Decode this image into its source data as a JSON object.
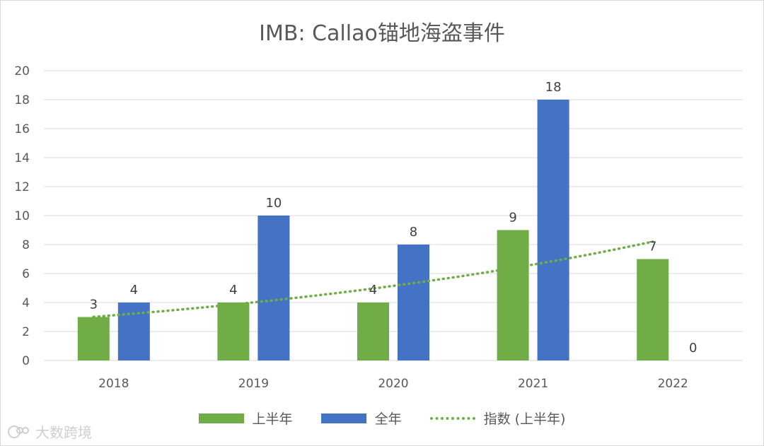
{
  "chart_data": {
    "type": "bar",
    "title": "IMB: Callao锚地海盗事件",
    "categories": [
      "2018",
      "2019",
      "2020",
      "2021",
      "2022"
    ],
    "series": [
      {
        "name": "上半年",
        "values": [
          3,
          4,
          4,
          9,
          7
        ],
        "color": "#70ad47"
      },
      {
        "name": "全年",
        "values": [
          4,
          10,
          8,
          18,
          0
        ],
        "color": "#4472c4"
      }
    ],
    "trendline": {
      "name": "指数 (上半年)",
      "type": "exponential",
      "of_series": "上半年",
      "color": "#70ad47",
      "style": "dotted"
    },
    "ylim": [
      0,
      20
    ],
    "yticks": [
      "0",
      "2",
      "4",
      "6",
      "8",
      "10",
      "12",
      "14",
      "16",
      "18",
      "20"
    ],
    "grid": true,
    "legend_position": "bottom"
  },
  "watermark": {
    "text": "大数跨境",
    "icon": "logo-icon"
  }
}
